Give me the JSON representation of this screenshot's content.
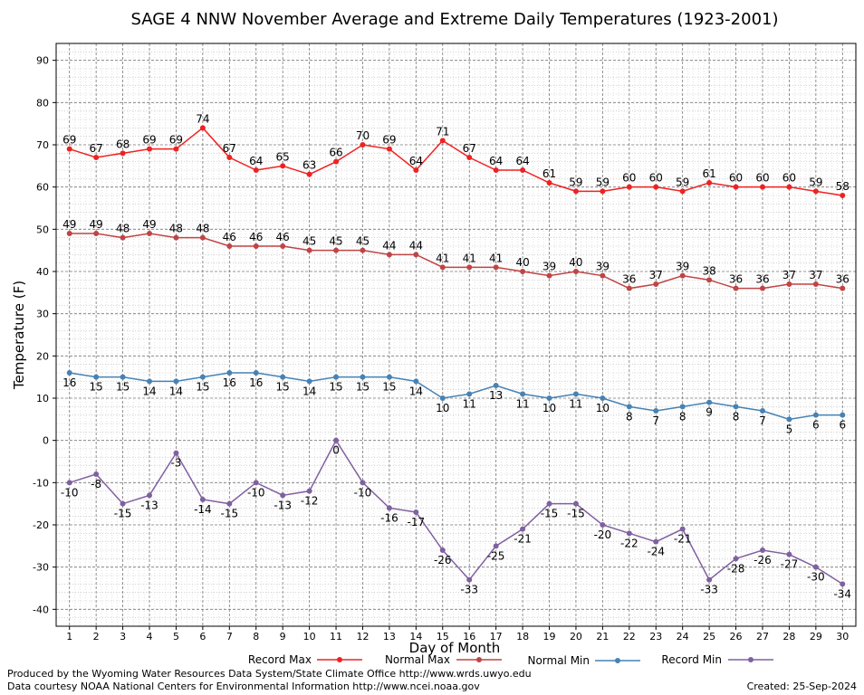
{
  "chart_data": {
    "type": "line",
    "title": "SAGE 4 NNW November Average and Extreme Daily Temperatures (1923-2001)",
    "xlabel": "Day of Month",
    "ylabel": "Temperature (F)",
    "x": [
      1,
      2,
      3,
      4,
      5,
      6,
      7,
      8,
      9,
      10,
      11,
      12,
      13,
      14,
      15,
      16,
      17,
      18,
      19,
      20,
      21,
      22,
      23,
      24,
      25,
      26,
      27,
      28,
      29,
      30
    ],
    "xlim": [
      0.5,
      30.5
    ],
    "ylim": [
      -44,
      94
    ],
    "yticks": [
      -40,
      -30,
      -20,
      -10,
      0,
      10,
      20,
      30,
      40,
      50,
      60,
      70,
      80,
      90
    ],
    "grid": true,
    "legend_position": "bottom",
    "series": [
      {
        "name": "Record Max",
        "color": "#ee2222",
        "label_position": "above",
        "values": [
          69,
          67,
          68,
          69,
          69,
          74,
          67,
          64,
          65,
          63,
          66,
          70,
          69,
          64,
          71,
          67,
          64,
          64,
          61,
          59,
          59,
          60,
          60,
          59,
          61,
          60,
          60,
          60,
          59,
          58
        ]
      },
      {
        "name": "Normal Max",
        "color": "#c04444",
        "label_position": "above",
        "values": [
          49,
          49,
          48,
          49,
          48,
          48,
          46,
          46,
          46,
          45,
          45,
          45,
          44,
          44,
          41,
          41,
          41,
          40,
          39,
          40,
          39,
          36,
          37,
          39,
          38,
          36,
          36,
          37,
          37,
          36
        ]
      },
      {
        "name": "Normal Min",
        "color": "#4682b4",
        "label_position": "below",
        "values": [
          16,
          15,
          15,
          14,
          14,
          15,
          16,
          16,
          15,
          14,
          15,
          15,
          15,
          14,
          10,
          11,
          13,
          11,
          10,
          11,
          10,
          8,
          7,
          8,
          9,
          8,
          7,
          5,
          6,
          6
        ]
      },
      {
        "name": "Record Min",
        "color": "#8060a0",
        "label_position": "below",
        "values": [
          -10,
          -8,
          -15,
          -13,
          -3,
          -14,
          -15,
          -10,
          -13,
          -12,
          0,
          -10,
          -16,
          -17,
          -26,
          -33,
          -25,
          -21,
          -15,
          -15,
          -20,
          -22,
          -24,
          -21,
          -33,
          -28,
          -26,
          -27,
          -30,
          -34
        ]
      }
    ]
  },
  "footer": {
    "produced_by": "Produced by the Wyoming Water Resources Data System/State Climate Office http://www.wrds.uwyo.edu",
    "courtesy": "Data courtesy NOAA National Centers for Environmental Information http://www.ncei.noaa.gov",
    "created": "Created:  25-Sep-2024"
  }
}
